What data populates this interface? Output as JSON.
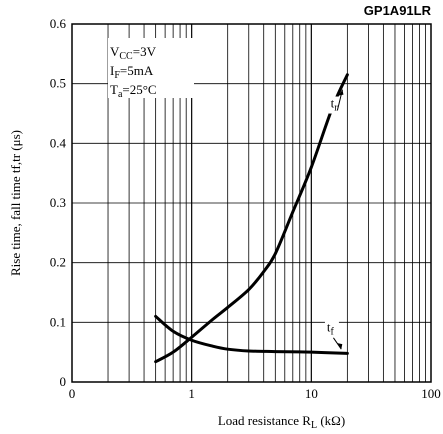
{
  "chart_data": {
    "type": "line",
    "title": "GP1A91LR",
    "xlabel": {
      "main": "Load resistance R",
      "sub": "L",
      "unit": " (kΩ)"
    },
    "ylabel": "Rise time, fall time tf,tr (μs)",
    "xscale": "log",
    "xlim": [
      0.1,
      100
    ],
    "ylim": [
      0,
      0.6
    ],
    "grid": true,
    "x_tick_labels": [
      {
        "value": 0.1,
        "label": "0"
      },
      {
        "value": 1,
        "label": "1"
      },
      {
        "value": 10,
        "label": "10"
      },
      {
        "value": 100,
        "label": "100"
      }
    ],
    "y_ticks": [
      0,
      0.1,
      0.2,
      0.3,
      0.4,
      0.5,
      0.6
    ],
    "y_tick_labels": [
      "0",
      "0.1",
      "0.2",
      "0.3",
      "0.4",
      "0.5",
      "0.6"
    ],
    "conditions": [
      {
        "main": "V",
        "sub": "CC",
        "rest": "=3V"
      },
      {
        "main": "I",
        "sub": "F",
        "rest": "=5mA"
      },
      {
        "main": "T",
        "sub": "a",
        "rest": "=25°C"
      }
    ],
    "series": [
      {
        "name": "tr",
        "label_main": "t",
        "label_sub": "r",
        "x": [
          0.5,
          0.7,
          1,
          1.5,
          2,
          3,
          4,
          5,
          7,
          10,
          15,
          20
        ],
        "y": [
          0.034,
          0.05,
          0.075,
          0.105,
          0.125,
          0.155,
          0.185,
          0.215,
          0.285,
          0.36,
          0.46,
          0.515
        ]
      },
      {
        "name": "tf",
        "label_main": "t",
        "label_sub": "f",
        "x": [
          0.5,
          0.7,
          1,
          1.5,
          2,
          3,
          5,
          10,
          20
        ],
        "y": [
          0.11,
          0.085,
          0.07,
          0.06,
          0.055,
          0.052,
          0.051,
          0.05,
          0.048
        ]
      }
    ]
  }
}
